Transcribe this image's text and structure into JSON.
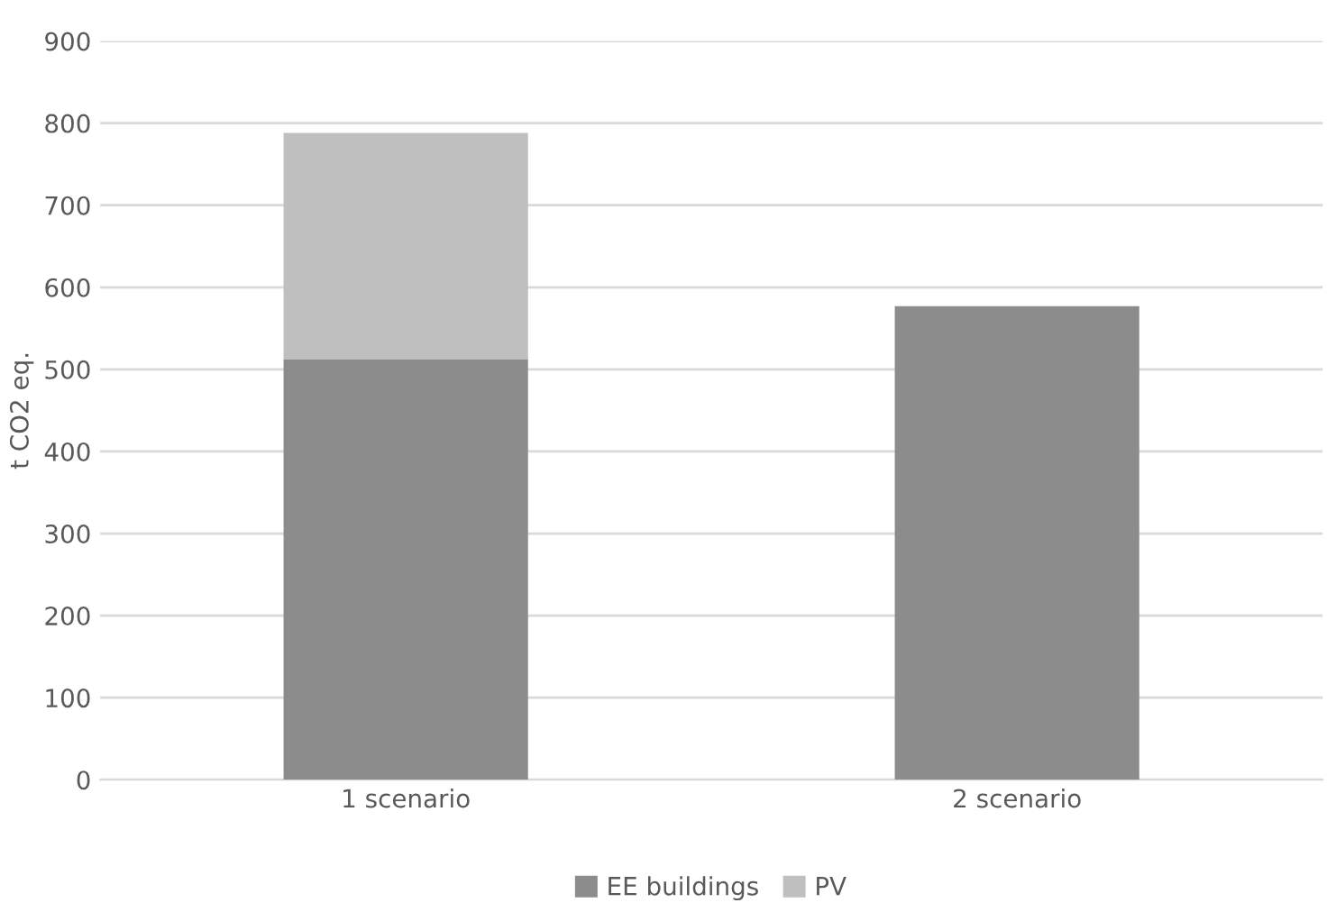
{
  "chart_data": {
    "type": "bar",
    "stacked": true,
    "ylabel": "t CO2 eq.",
    "categories": [
      "1 scenario",
      "2 scenario"
    ],
    "series": [
      {
        "name": "EE buildings",
        "color": "#8c8c8c",
        "values": [
          512,
          577
        ]
      },
      {
        "name": "PV",
        "color": "#bfbfbf",
        "values": [
          276,
          null
        ]
      }
    ],
    "ylim": [
      0,
      900
    ],
    "yticks": [
      0,
      100,
      200,
      300,
      400,
      500,
      600,
      700,
      800,
      900
    ],
    "grid": "y",
    "legend": "bottom"
  }
}
